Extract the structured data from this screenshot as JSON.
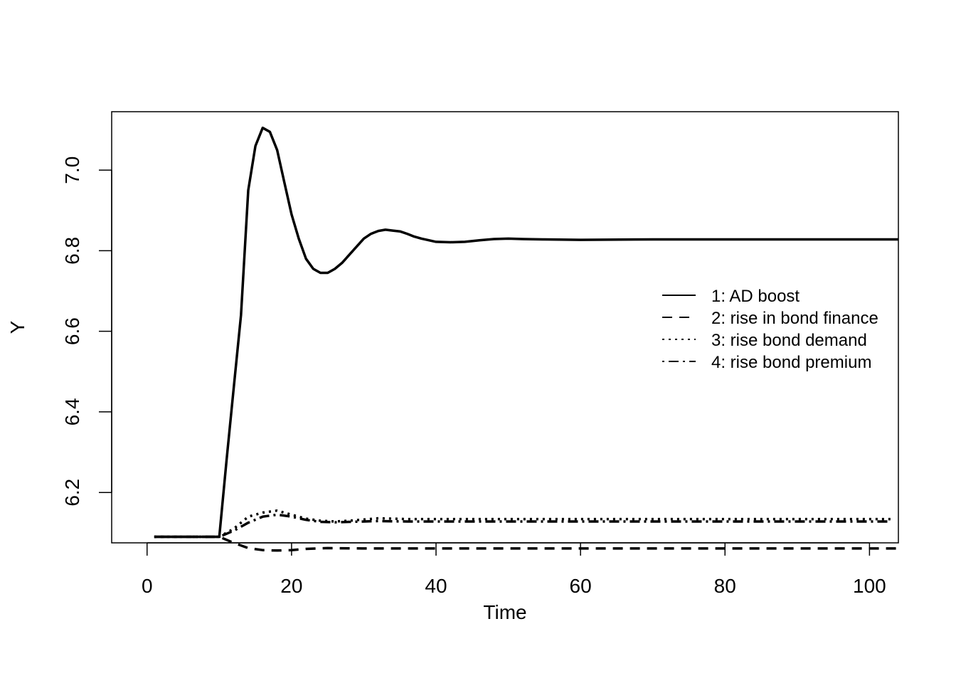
{
  "chart_data": {
    "type": "line",
    "title": "",
    "xlabel": "Time",
    "ylabel": "Y",
    "xlim": [
      -4.9,
      104
    ],
    "ylim": [
      6.075,
      7.145
    ],
    "x_ticks": [
      "0",
      "20",
      "40",
      "60",
      "80",
      "100"
    ],
    "x_tick_values": [
      0,
      20,
      40,
      60,
      80,
      100
    ],
    "y_ticks": [
      "6.2",
      "6.4",
      "6.6",
      "6.8",
      "7.0"
    ],
    "y_tick_values": [
      6.2,
      6.4,
      6.6,
      6.8,
      7.0
    ],
    "grid": false,
    "legend_position": "right",
    "colors": {
      "line": "#000000",
      "background": "#ffffff"
    },
    "series": [
      {
        "name": "1: AD boost",
        "dash": "solid",
        "points": [
          [
            1,
            6.09
          ],
          [
            10,
            6.09
          ],
          [
            11,
            6.28
          ],
          [
            12,
            6.46
          ],
          [
            13,
            6.64
          ],
          [
            14,
            6.95
          ],
          [
            15,
            7.06
          ],
          [
            16,
            7.105
          ],
          [
            17,
            7.095
          ],
          [
            18,
            7.05
          ],
          [
            19,
            6.97
          ],
          [
            20,
            6.89
          ],
          [
            21,
            6.83
          ],
          [
            22,
            6.78
          ],
          [
            23,
            6.755
          ],
          [
            24,
            6.745
          ],
          [
            25,
            6.745
          ],
          [
            26,
            6.755
          ],
          [
            27,
            6.77
          ],
          [
            28,
            6.79
          ],
          [
            29,
            6.81
          ],
          [
            30,
            6.83
          ],
          [
            31,
            6.842
          ],
          [
            32,
            6.849
          ],
          [
            33,
            6.852
          ],
          [
            34,
            6.85
          ],
          [
            35,
            6.848
          ],
          [
            36,
            6.842
          ],
          [
            37,
            6.835
          ],
          [
            38,
            6.83
          ],
          [
            39,
            6.826
          ],
          [
            40,
            6.822
          ],
          [
            42,
            6.821
          ],
          [
            44,
            6.822
          ],
          [
            46,
            6.826
          ],
          [
            48,
            6.829
          ],
          [
            50,
            6.83
          ],
          [
            52,
            6.829
          ],
          [
            55,
            6.828
          ],
          [
            60,
            6.827
          ],
          [
            70,
            6.828
          ],
          [
            80,
            6.828
          ],
          [
            90,
            6.828
          ],
          [
            104,
            6.828
          ]
        ]
      },
      {
        "name": "2: rise in bond finance",
        "dash": "dashed",
        "points": [
          [
            1,
            6.09
          ],
          [
            10,
            6.09
          ],
          [
            12,
            6.075
          ],
          [
            14,
            6.062
          ],
          [
            16,
            6.057
          ],
          [
            18,
            6.056
          ],
          [
            20,
            6.057
          ],
          [
            22,
            6.06
          ],
          [
            25,
            6.062
          ],
          [
            30,
            6.061
          ],
          [
            40,
            6.061
          ],
          [
            60,
            6.061
          ],
          [
            80,
            6.061
          ],
          [
            104,
            6.061
          ]
        ]
      },
      {
        "name": "3: rise bond demand",
        "dash": "dotted",
        "points": [
          [
            1,
            6.09
          ],
          [
            10,
            6.09
          ],
          [
            12,
            6.11
          ],
          [
            14,
            6.14
          ],
          [
            16,
            6.15
          ],
          [
            18,
            6.155
          ],
          [
            20,
            6.145
          ],
          [
            22,
            6.135
          ],
          [
            24,
            6.13
          ],
          [
            26,
            6.128
          ],
          [
            28,
            6.13
          ],
          [
            30,
            6.133
          ],
          [
            32,
            6.136
          ],
          [
            34,
            6.135
          ],
          [
            36,
            6.134
          ],
          [
            40,
            6.134
          ],
          [
            50,
            6.134
          ],
          [
            60,
            6.134
          ],
          [
            80,
            6.134
          ],
          [
            103,
            6.134
          ]
        ]
      },
      {
        "name": "4: rise bond premium",
        "dash": "dotdash",
        "points": [
          [
            1,
            6.09
          ],
          [
            10,
            6.09
          ],
          [
            12,
            6.105
          ],
          [
            14,
            6.125
          ],
          [
            16,
            6.14
          ],
          [
            18,
            6.145
          ],
          [
            20,
            6.14
          ],
          [
            22,
            6.132
          ],
          [
            24,
            6.127
          ],
          [
            26,
            6.126
          ],
          [
            28,
            6.127
          ],
          [
            30,
            6.128
          ],
          [
            32,
            6.129
          ],
          [
            36,
            6.128
          ],
          [
            40,
            6.128
          ],
          [
            60,
            6.128
          ],
          [
            80,
            6.128
          ],
          [
            103,
            6.128
          ]
        ]
      }
    ]
  }
}
